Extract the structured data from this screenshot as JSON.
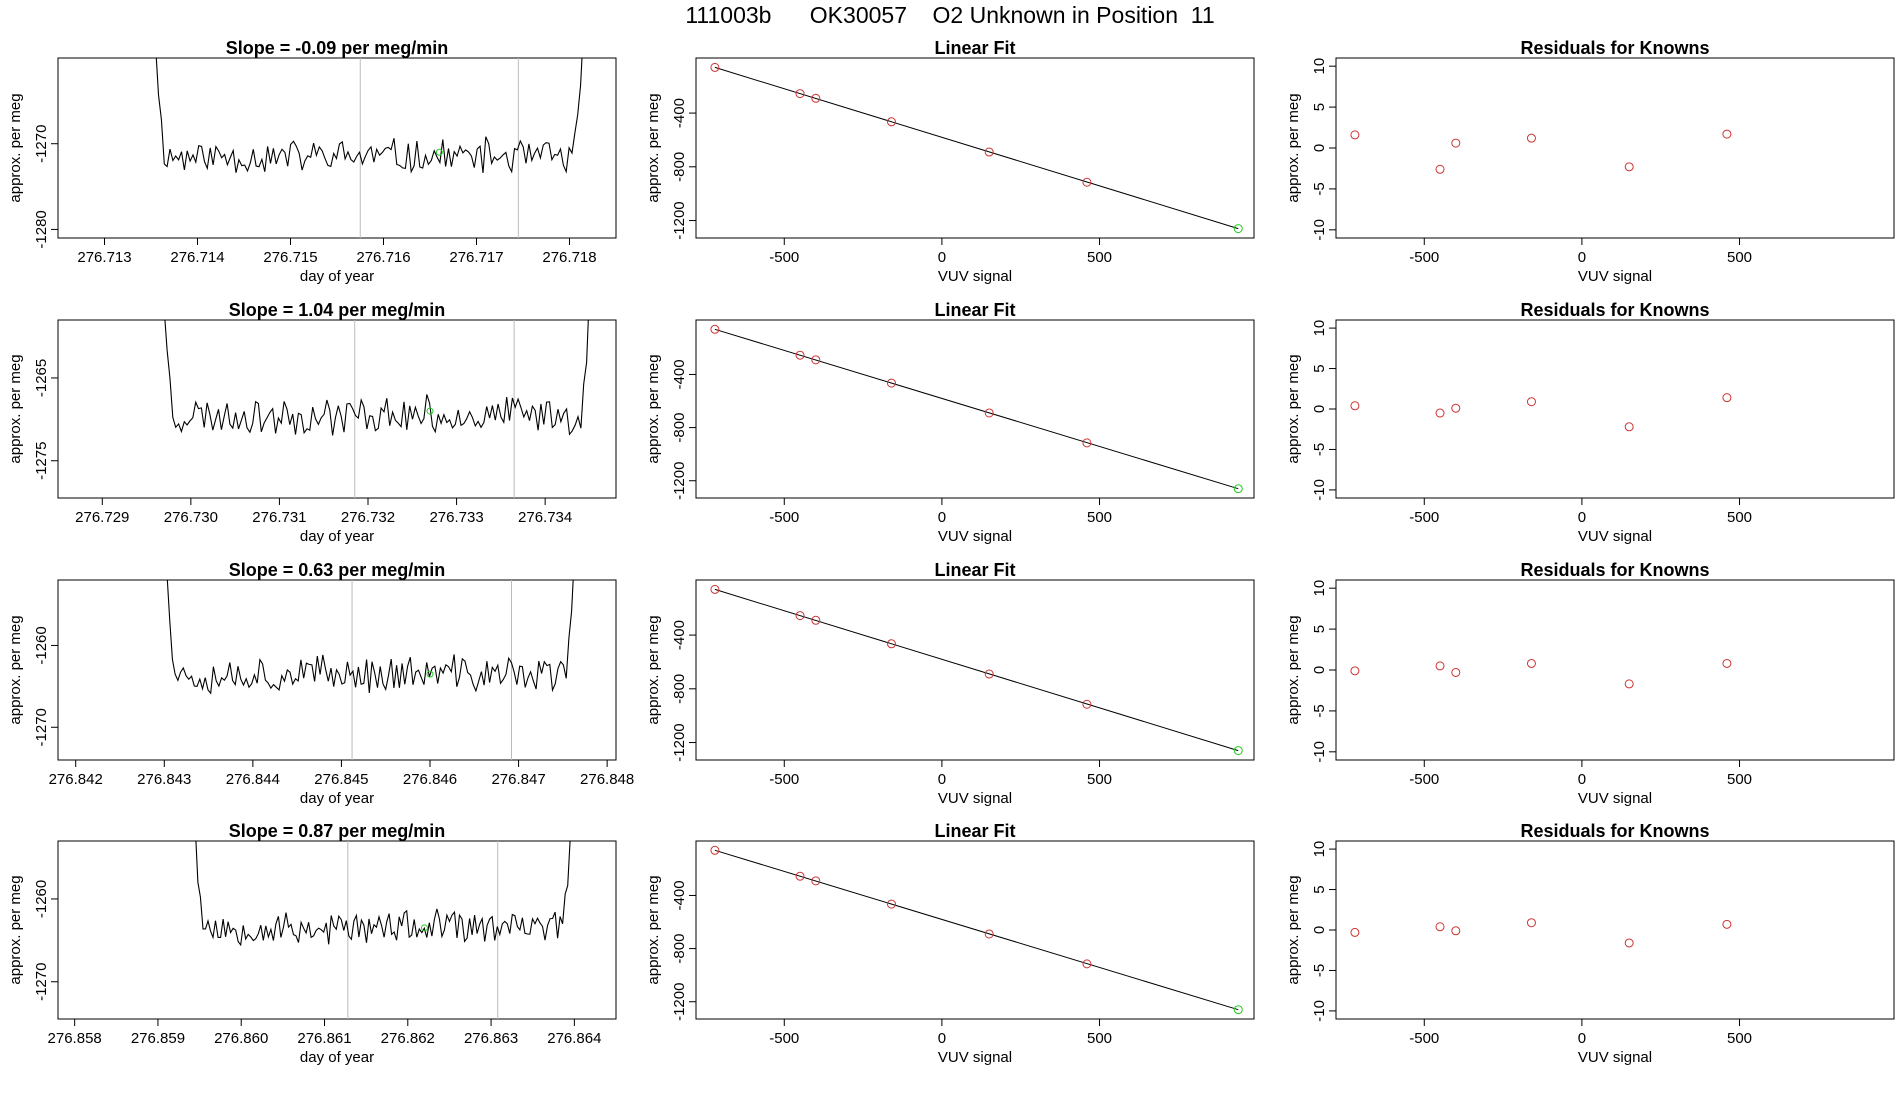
{
  "page": {
    "title": "111003b      OK30057    O2 Unknown in Position  11"
  },
  "colors": {
    "trace": "#000000",
    "marker_known": "#cd3333",
    "marker_unknown": "#22cc22",
    "vline": "#bbbbbb",
    "fit_line": "#000000"
  },
  "chart_data": [
    {
      "type": "line",
      "row": 0,
      "col": 0,
      "title": "Slope =  -0.09  per meg/min",
      "xlabel": "day of year",
      "ylabel": "approx. per meg",
      "xlim": [
        276.7125,
        276.7185
      ],
      "ylim": [
        -1281,
        -1260
      ],
      "xticks": [
        276.713,
        276.714,
        276.715,
        276.716,
        276.717,
        276.718
      ],
      "yticks": [
        -1280,
        -1270
      ],
      "vlines": [
        276.71575,
        276.71745
      ],
      "green_point": [
        276.7166,
        -1271.0
      ],
      "trace": {
        "x_start": 276.71355,
        "x_end": 276.71815,
        "count": 150,
        "baseline": -1271.5,
        "amplitude": 2.0,
        "edge_level": -1258,
        "seed": 11
      }
    },
    {
      "type": "scatter",
      "row": 0,
      "col": 1,
      "title": "Linear Fit",
      "xlabel": "VUV signal",
      "ylabel": "approx. per meg",
      "xlim": [
        -780,
        990
      ],
      "ylim": [
        -1330,
        10
      ],
      "xticks": [
        -500,
        0,
        500
      ],
      "yticks": [
        -400,
        -800,
        -1200
      ],
      "fit": {
        "x": [
          -720,
          940
        ],
        "y": [
          -60,
          -1260
        ]
      },
      "known": {
        "x": [
          -720,
          -450,
          -400,
          -160,
          150,
          460
        ],
        "y": [
          -60,
          -255,
          -290,
          -465,
          -690,
          -915
        ]
      },
      "unknown": {
        "x": [
          940
        ],
        "y": [
          -1260
        ]
      }
    },
    {
      "type": "scatter",
      "row": 0,
      "col": 2,
      "title": "Residuals for Knowns",
      "xlabel": "VUV signal",
      "ylabel": "approx. per meg",
      "xlim": [
        -780,
        990
      ],
      "ylim": [
        -11,
        11
      ],
      "xticks": [
        -500,
        0,
        500
      ],
      "yticks": [
        10,
        5,
        0,
        -5,
        -10
      ],
      "known": {
        "x": [
          -720,
          -450,
          -400,
          -160,
          150,
          460
        ],
        "y": [
          1.6,
          -2.6,
          0.6,
          1.2,
          -2.3,
          1.7
        ]
      }
    },
    {
      "type": "line",
      "row": 1,
      "col": 0,
      "title": "Slope =  1.04  per meg/min",
      "xlabel": "day of year",
      "ylabel": "approx. per meg",
      "xlim": [
        276.7285,
        276.7348
      ],
      "ylim": [
        -1279.5,
        -1258
      ],
      "xticks": [
        276.729,
        276.73,
        276.731,
        276.732,
        276.733,
        276.734
      ],
      "yticks": [
        -1265,
        -1275
      ],
      "vlines": [
        276.73185,
        276.73365
      ],
      "green_point": [
        276.7327,
        -1269.0
      ],
      "trace": {
        "x_start": 276.7297,
        "x_end": 276.7345,
        "count": 150,
        "baseline": -1269.5,
        "amplitude": 2.2,
        "edge_level": -1256,
        "seed": 23
      }
    },
    {
      "type": "scatter",
      "row": 1,
      "col": 1,
      "title": "Linear Fit",
      "xlabel": "VUV signal",
      "ylabel": "approx. per meg",
      "xlim": [
        -780,
        990
      ],
      "ylim": [
        -1330,
        10
      ],
      "xticks": [
        -500,
        0,
        500
      ],
      "yticks": [
        -400,
        -800,
        -1200
      ],
      "fit": {
        "x": [
          -720,
          940
        ],
        "y": [
          -60,
          -1260
        ]
      },
      "known": {
        "x": [
          -720,
          -450,
          -400,
          -160,
          150,
          460
        ],
        "y": [
          -60,
          -255,
          -290,
          -465,
          -690,
          -915
        ]
      },
      "unknown": {
        "x": [
          940
        ],
        "y": [
          -1260
        ]
      }
    },
    {
      "type": "scatter",
      "row": 1,
      "col": 2,
      "title": "Residuals for Knowns",
      "xlabel": "VUV signal",
      "ylabel": "approx. per meg",
      "xlim": [
        -780,
        990
      ],
      "ylim": [
        -11,
        11
      ],
      "xticks": [
        -500,
        0,
        500
      ],
      "yticks": [
        10,
        5,
        0,
        -5,
        -10
      ],
      "known": {
        "x": [
          -720,
          -450,
          -400,
          -160,
          150,
          460
        ],
        "y": [
          0.4,
          -0.5,
          0.1,
          0.9,
          -2.2,
          1.4
        ]
      }
    },
    {
      "type": "line",
      "row": 2,
      "col": 0,
      "title": "Slope =  0.63  per meg/min",
      "xlabel": "day of year",
      "ylabel": "approx. per meg",
      "xlim": [
        276.8418,
        276.8481
      ],
      "ylim": [
        -1274,
        -1252
      ],
      "xticks": [
        276.842,
        276.843,
        276.844,
        276.845,
        276.846,
        276.847,
        276.848
      ],
      "yticks": [
        -1260,
        -1270
      ],
      "vlines": [
        276.84512,
        276.84692
      ],
      "green_point": [
        276.846,
        -1263.5
      ],
      "trace": {
        "x_start": 276.84303,
        "x_end": 276.84763,
        "count": 150,
        "baseline": -1263.5,
        "amplitude": 2.2,
        "edge_level": -1250,
        "seed": 37
      }
    },
    {
      "type": "scatter",
      "row": 2,
      "col": 1,
      "title": "Linear Fit",
      "xlabel": "VUV signal",
      "ylabel": "approx. per meg",
      "xlim": [
        -780,
        990
      ],
      "ylim": [
        -1330,
        10
      ],
      "xticks": [
        -500,
        0,
        500
      ],
      "yticks": [
        -400,
        -800,
        -1200
      ],
      "fit": {
        "x": [
          -720,
          940
        ],
        "y": [
          -60,
          -1260
        ]
      },
      "known": {
        "x": [
          -720,
          -450,
          -400,
          -160,
          150,
          460
        ],
        "y": [
          -60,
          -255,
          -290,
          -465,
          -690,
          -915
        ]
      },
      "unknown": {
        "x": [
          940
        ],
        "y": [
          -1260
        ]
      }
    },
    {
      "type": "scatter",
      "row": 2,
      "col": 2,
      "title": "Residuals for Knowns",
      "xlabel": "VUV signal",
      "ylabel": "approx. per meg",
      "xlim": [
        -780,
        990
      ],
      "ylim": [
        -11,
        11
      ],
      "xticks": [
        -500,
        0,
        500
      ],
      "yticks": [
        10,
        5,
        0,
        -5,
        -10
      ],
      "known": {
        "x": [
          -720,
          -450,
          -400,
          -160,
          150,
          460
        ],
        "y": [
          -0.1,
          0.5,
          -0.3,
          0.8,
          -1.7,
          0.8
        ]
      }
    },
    {
      "type": "line",
      "row": 3,
      "col": 0,
      "title": "Slope =  0.87  per meg/min",
      "xlabel": "day of year",
      "ylabel": "approx. per meg",
      "xlim": [
        276.8578,
        276.8645
      ],
      "ylim": [
        -1274.5,
        -1253
      ],
      "xticks": [
        276.858,
        276.859,
        276.86,
        276.861,
        276.862,
        276.863,
        276.864
      ],
      "yticks": [
        -1260,
        -1270
      ],
      "vlines": [
        276.86128,
        276.86308
      ],
      "green_point": [
        276.8622,
        -1263.5
      ],
      "trace": {
        "x_start": 276.85945,
        "x_end": 276.86395,
        "count": 150,
        "baseline": -1263.5,
        "amplitude": 2.0,
        "edge_level": -1251,
        "seed": 53
      }
    },
    {
      "type": "scatter",
      "row": 3,
      "col": 1,
      "title": "Linear Fit",
      "xlabel": "VUV signal",
      "ylabel": "approx. per meg",
      "xlim": [
        -780,
        990
      ],
      "ylim": [
        -1330,
        10
      ],
      "xticks": [
        -500,
        0,
        500
      ],
      "yticks": [
        -400,
        -800,
        -1200
      ],
      "fit": {
        "x": [
          -720,
          940
        ],
        "y": [
          -60,
          -1260
        ]
      },
      "known": {
        "x": [
          -720,
          -450,
          -400,
          -160,
          150,
          460
        ],
        "y": [
          -60,
          -255,
          -290,
          -465,
          -690,
          -915
        ]
      },
      "unknown": {
        "x": [
          940
        ],
        "y": [
          -1260
        ]
      }
    },
    {
      "type": "scatter",
      "row": 3,
      "col": 2,
      "title": "Residuals for Knowns",
      "xlabel": "VUV signal",
      "ylabel": "approx. per meg",
      "xlim": [
        -780,
        990
      ],
      "ylim": [
        -11,
        11
      ],
      "xticks": [
        -500,
        0,
        500
      ],
      "yticks": [
        10,
        5,
        0,
        -5,
        -10
      ],
      "known": {
        "x": [
          -720,
          -450,
          -400,
          -160,
          150,
          460
        ],
        "y": [
          -0.3,
          0.4,
          -0.1,
          0.9,
          -1.6,
          0.7
        ]
      }
    }
  ]
}
